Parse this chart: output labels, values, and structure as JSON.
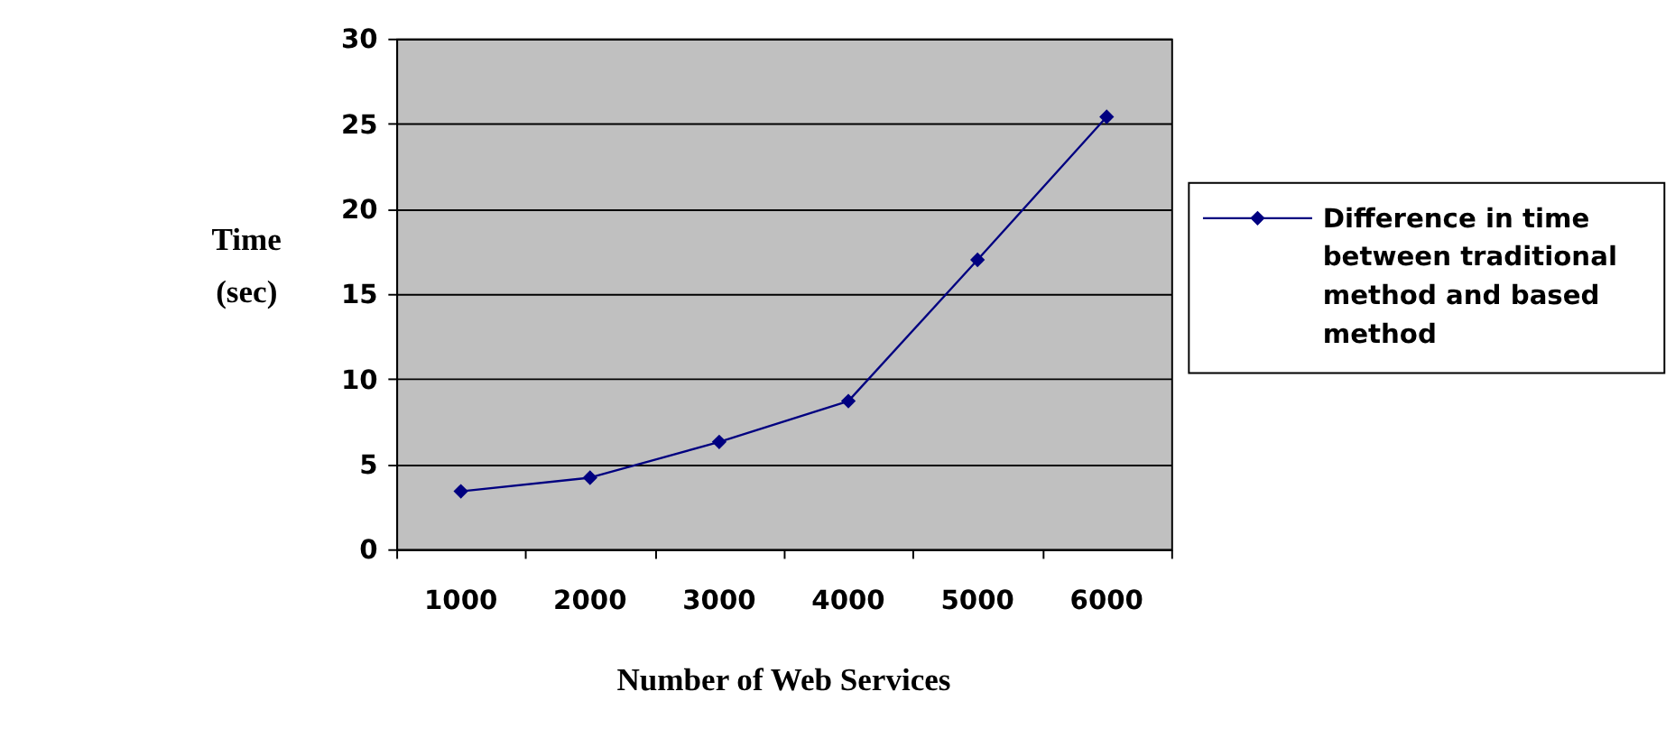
{
  "chart_data": {
    "type": "line",
    "xlabel": "Number of Web Services",
    "ylabel": "Time (sec)",
    "categories": [
      "1000",
      "2000",
      "3000",
      "4000",
      "5000",
      "6000"
    ],
    "series": [
      {
        "name": "Difference in time between traditional method and based method",
        "color": "#000080",
        "values": [
          3.4,
          4.2,
          6.3,
          8.7,
          17.0,
          25.4
        ]
      }
    ],
    "ylim": [
      0,
      30
    ],
    "yticks": [
      0,
      5,
      10,
      15,
      20,
      25,
      30
    ],
    "grid": "y",
    "legend": "right",
    "marker": "diamond",
    "line_style": "solid"
  }
}
